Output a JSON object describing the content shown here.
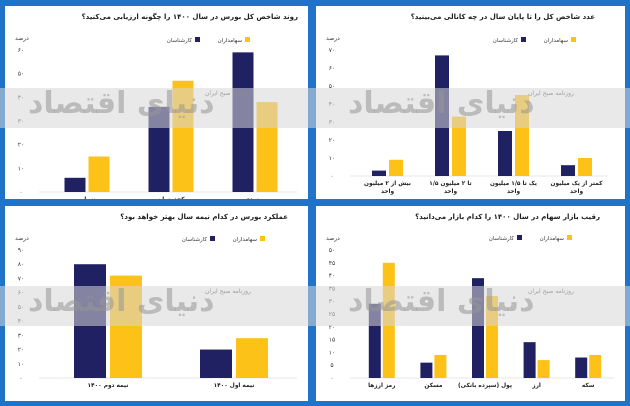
{
  "colors": {
    "navy": "#1f2163",
    "gold": "#fdc218",
    "frame": "#1f74c9"
  },
  "legend": {
    "a": "کارشناسان",
    "b": "سهامداران"
  },
  "watermark": {
    "big": "دنیای اقتصاد",
    "small": "روزنامه صبح ایران"
  },
  "chart_data": [
    {
      "id": "tl",
      "type": "bar",
      "title": "روند شاخص کل بورس در سال ۱۴۰۰ را چگونه ارزیابی می‌کنید؟",
      "ylabel": "درصد",
      "ylim": [
        0,
        60
      ],
      "yticks": [
        "۰",
        "۱۰",
        "۲۰",
        "۳۰",
        "۴۰",
        "۵۰",
        "۶۰"
      ],
      "categories": [
        "صعودی",
        "کجدوسان",
        "نزولی"
      ],
      "series": [
        {
          "name": "کارشناسان",
          "values": [
            59,
            36,
            6
          ]
        },
        {
          "name": "سهامداران",
          "values": [
            38,
            47,
            15
          ]
        }
      ]
    },
    {
      "id": "tr",
      "type": "bar",
      "title": "عدد شاخص کل را تا پایان سال در چه کانالی می‌بینید؟",
      "ylabel": "درصد",
      "ylim": [
        0,
        70
      ],
      "yticks": [
        "۰",
        "۱۰",
        "۲۰",
        "۳۰",
        "۴۰",
        "۵۰",
        "۶۰",
        "۷۰"
      ],
      "categories": [
        "کمتر از یک میلیون واحد",
        "یک تا ۱/۵ میلیون واحد",
        "۱/۵ تا ۲ میلیون واحد",
        "بیش از ۲ میلیون واحد"
      ],
      "series": [
        {
          "name": "کارشناسان",
          "values": [
            6,
            25,
            67,
            3
          ]
        },
        {
          "name": "سهامداران",
          "values": [
            10,
            45,
            33,
            9
          ]
        }
      ]
    },
    {
      "id": "bl",
      "type": "bar",
      "title": "عملکرد بورس در کدام نیمه سال بهتر خواهد بود؟",
      "ylabel": "درصد",
      "ylim": [
        0,
        90
      ],
      "yticks": [
        "۰",
        "۱۰",
        "۲۰",
        "۳۰",
        "۴۰",
        "۵۰",
        "۶۰",
        "۷۰",
        "۸۰",
        "۹۰"
      ],
      "categories": [
        "نیمه اول ۱۴۰۰",
        "نیمه دوم ۱۴۰۰"
      ],
      "series": [
        {
          "name": "کارشناسان",
          "values": [
            20,
            80
          ]
        },
        {
          "name": "سهامداران",
          "values": [
            28,
            72
          ]
        }
      ]
    },
    {
      "id": "br",
      "type": "bar",
      "title": "رقیب بازار سهام در سال ۱۴۰۰ را کدام بازار می‌دانید؟",
      "ylabel": "درصد",
      "ylim": [
        0,
        50
      ],
      "yticks": [
        "۰",
        "۵",
        "۱۰",
        "۱۵",
        "۲۰",
        "۲۵",
        "۳۰",
        "۳۵",
        "۴۰",
        "۴۵",
        "۵۰"
      ],
      "categories": [
        "سکه",
        "ارز",
        "پول (سپرده بانکی)",
        "مسکن",
        "رمز ارزها"
      ],
      "series": [
        {
          "name": "کارشناسان",
          "values": [
            8,
            14,
            39,
            6,
            29
          ]
        },
        {
          "name": "سهامداران",
          "values": [
            9,
            7,
            32,
            9,
            45
          ]
        }
      ]
    }
  ]
}
